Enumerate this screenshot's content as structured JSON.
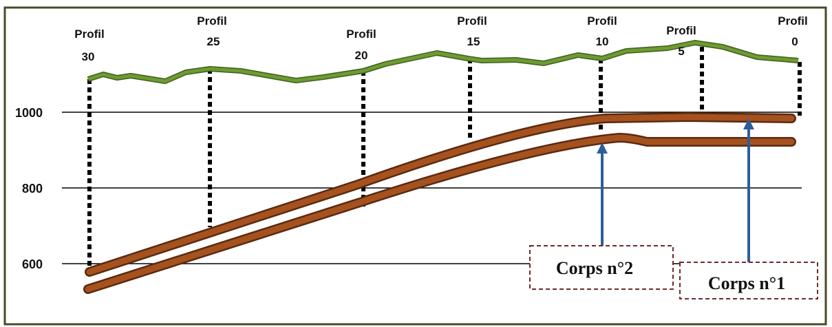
{
  "profiles": [
    {
      "line1": "Profil",
      "line2": "30"
    },
    {
      "line1": "Profil",
      "line2": "25"
    },
    {
      "line1": "Profil",
      "line2": "20"
    },
    {
      "line1": "Profil",
      "line2": "15"
    },
    {
      "line1": "Profil",
      "line2": "10"
    },
    {
      "line1": "Profil",
      "line2": "5"
    },
    {
      "line1": "Profil",
      "line2": "0"
    }
  ],
  "axis_labels": [
    "1000",
    "800",
    "600"
  ],
  "bodies": [
    "Corps  n°2",
    "Corps  n°1"
  ]
}
